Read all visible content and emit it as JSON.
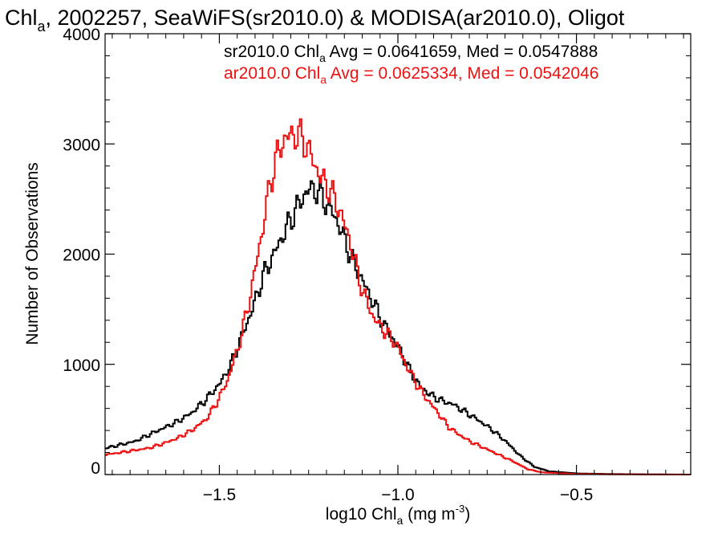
{
  "chart_data": {
    "type": "line",
    "step": true,
    "title": {
      "main": "Chl",
      "sub": "a",
      "rest": ", 2002257, SeaWiFS(sr2010.0) & MODISA(ar2010.0), Oligot"
    },
    "xlabel": {
      "main": "log10 Chl",
      "sub": "a",
      "rest": " (mg m",
      "sup": "-3",
      "end": ")"
    },
    "ylabel": "Number of Observations",
    "xlim": [
      -1.82,
      -0.18
    ],
    "ylim": [
      0,
      4000
    ],
    "x_ticks": [
      -1.5,
      -1.0,
      -0.5
    ],
    "x_tick_labels": [
      "−1.5",
      "−1.0",
      "−0.5"
    ],
    "y_ticks": [
      0,
      1000,
      2000,
      3000,
      4000
    ],
    "y_tick_labels": [
      "0",
      "1000",
      "2000",
      "3000",
      "4000"
    ],
    "legend": [
      {
        "pre": "sr2010.0 Chl",
        "sub": "a",
        "post": " Avg = 0.0641659, Med = 0.0547888",
        "color": "#000000"
      },
      {
        "pre": "ar2010.0 Chl",
        "sub": "a",
        "post": " Avg = 0.0625334, Med = 0.0542046",
        "color": "#ee1111"
      }
    ],
    "series": [
      {
        "color": "#000000",
        "points": [
          [
            -1.82,
            240
          ],
          [
            -1.78,
            270
          ],
          [
            -1.74,
            300
          ],
          [
            -1.7,
            360
          ],
          [
            -1.66,
            420
          ],
          [
            -1.62,
            480
          ],
          [
            -1.58,
            560
          ],
          [
            -1.54,
            680
          ],
          [
            -1.5,
            830
          ],
          [
            -1.47,
            1000
          ],
          [
            -1.44,
            1250
          ],
          [
            -1.41,
            1500
          ],
          [
            -1.38,
            1800
          ],
          [
            -1.35,
            2000
          ],
          [
            -1.32,
            2200
          ],
          [
            -1.3,
            2330
          ],
          [
            -1.28,
            2450
          ],
          [
            -1.26,
            2560
          ],
          [
            -1.24,
            2600
          ],
          [
            -1.22,
            2550
          ],
          [
            -1.2,
            2450
          ],
          [
            -1.18,
            2350
          ],
          [
            -1.16,
            2200
          ],
          [
            -1.13,
            1950
          ],
          [
            -1.1,
            1750
          ],
          [
            -1.07,
            1550
          ],
          [
            -1.04,
            1350
          ],
          [
            -1.0,
            1150
          ],
          [
            -0.97,
            950
          ],
          [
            -0.94,
            800
          ],
          [
            -0.91,
            720
          ],
          [
            -0.88,
            670
          ],
          [
            -0.85,
            640
          ],
          [
            -0.82,
            580
          ],
          [
            -0.78,
            500
          ],
          [
            -0.74,
            410
          ],
          [
            -0.7,
            300
          ],
          [
            -0.66,
            170
          ],
          [
            -0.62,
            70
          ],
          [
            -0.58,
            30
          ],
          [
            -0.5,
            10
          ],
          [
            -0.4,
            5
          ],
          [
            -0.3,
            2
          ],
          [
            -0.18,
            0
          ]
        ]
      },
      {
        "color": "#ee1111",
        "points": [
          [
            -1.82,
            180
          ],
          [
            -1.78,
            200
          ],
          [
            -1.74,
            220
          ],
          [
            -1.7,
            240
          ],
          [
            -1.66,
            280
          ],
          [
            -1.62,
            330
          ],
          [
            -1.58,
            400
          ],
          [
            -1.54,
            500
          ],
          [
            -1.51,
            650
          ],
          [
            -1.48,
            850
          ],
          [
            -1.45,
            1150
          ],
          [
            -1.42,
            1550
          ],
          [
            -1.4,
            1900
          ],
          [
            -1.38,
            2250
          ],
          [
            -1.36,
            2650
          ],
          [
            -1.34,
            2900
          ],
          [
            -1.32,
            3050
          ],
          [
            -1.3,
            3080
          ],
          [
            -1.28,
            3080
          ],
          [
            -1.26,
            3000
          ],
          [
            -1.24,
            2850
          ],
          [
            -1.22,
            2700
          ],
          [
            -1.2,
            2620
          ],
          [
            -1.18,
            2500
          ],
          [
            -1.16,
            2350
          ],
          [
            -1.14,
            2150
          ],
          [
            -1.12,
            1900
          ],
          [
            -1.1,
            1650
          ],
          [
            -1.07,
            1420
          ],
          [
            -1.04,
            1300
          ],
          [
            -1.01,
            1200
          ],
          [
            -0.98,
            1000
          ],
          [
            -0.95,
            820
          ],
          [
            -0.92,
            680
          ],
          [
            -0.89,
            560
          ],
          [
            -0.86,
            430
          ],
          [
            -0.83,
            360
          ],
          [
            -0.8,
            300
          ],
          [
            -0.76,
            240
          ],
          [
            -0.72,
            180
          ],
          [
            -0.68,
            120
          ],
          [
            -0.64,
            50
          ],
          [
            -0.6,
            20
          ],
          [
            -0.5,
            5
          ],
          [
            -0.4,
            2
          ],
          [
            -0.18,
            0
          ]
        ]
      }
    ]
  }
}
